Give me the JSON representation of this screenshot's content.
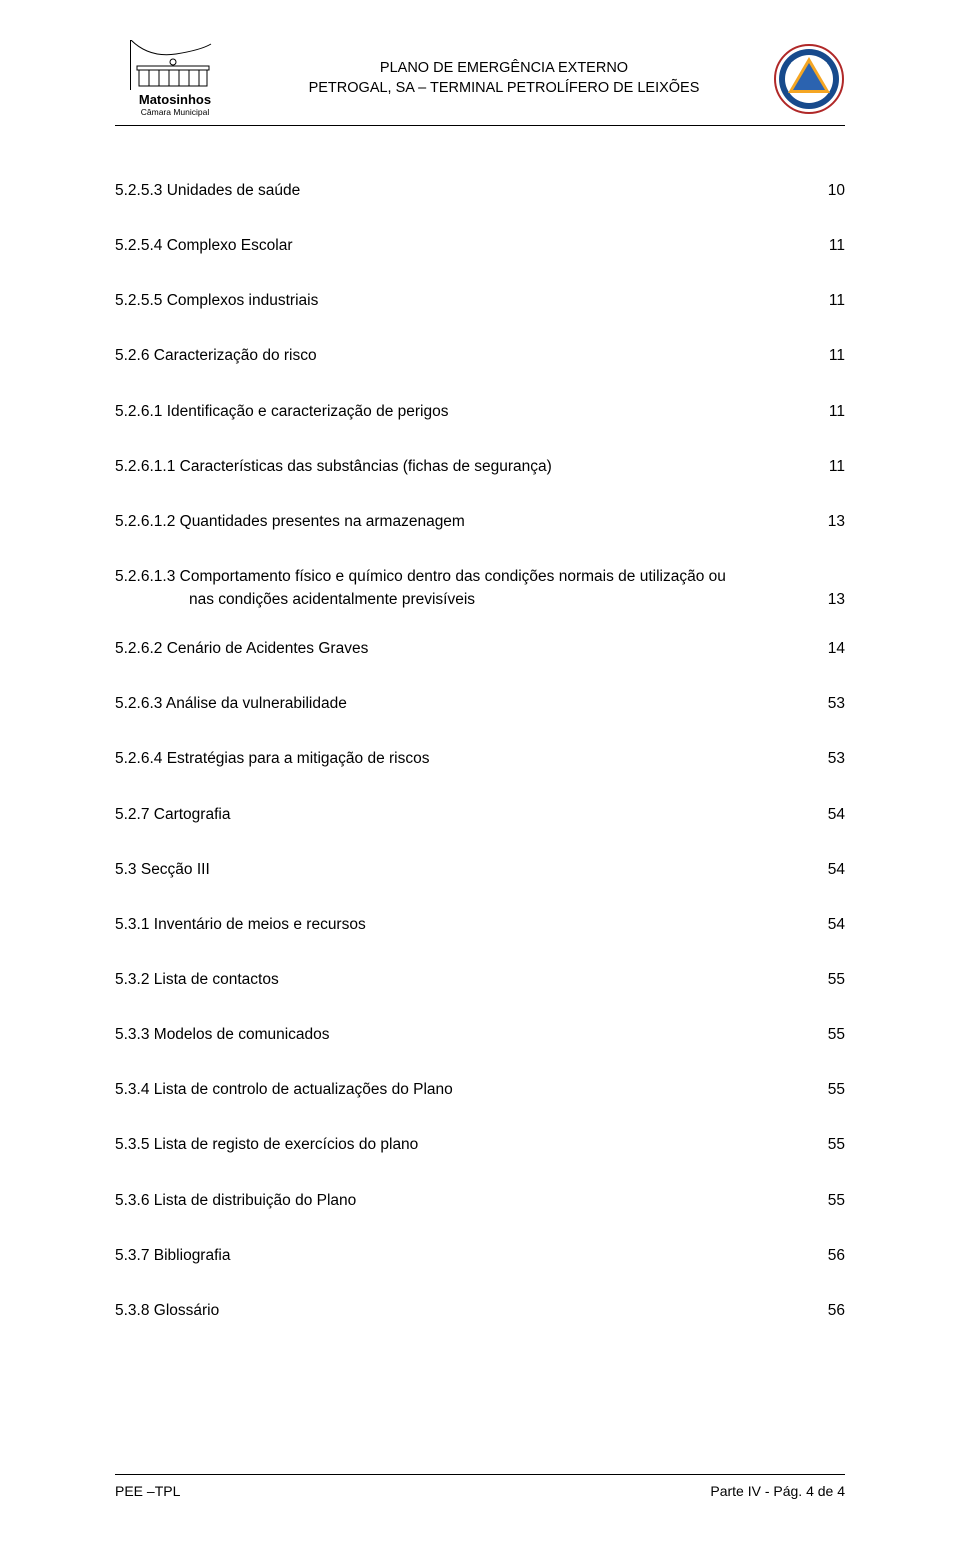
{
  "header": {
    "logo_main": "Matosinhos",
    "logo_sub": "Câmara Municipal",
    "title_line1": "PLANO DE EMERGÊNCIA EXTERNO",
    "title_line2": "PETROGAL, SA – TERMINAL PETROLÍFERO DE LEIXÕES"
  },
  "typography": {
    "body_fontsize": 15.5,
    "header_fontsize": 14.5,
    "footer_fontsize": 14
  },
  "colors": {
    "text": "#000000",
    "background": "#ffffff",
    "rule": "#000000",
    "badge_border": "#b02828",
    "badge_ring": "#174a8c",
    "badge_triangle": "#f5a623",
    "badge_inner": "#2b63b0"
  },
  "toc": [
    {
      "label": "5.2.5.3  Unidades de saúde",
      "page": "10",
      "gap": 35
    },
    {
      "label": "5.2.5.4  Complexo Escolar",
      "page": "11",
      "gap": 35
    },
    {
      "label": "5.2.5.5  Complexos industriais",
      "page": "11",
      "gap": 35
    },
    {
      "label": "5.2.6  Caracterização do risco",
      "page": "11",
      "gap": 35
    },
    {
      "label": "5.2.6.1  Identificação e caracterização de perigos",
      "page": "11",
      "gap": 35
    },
    {
      "label": "5.2.6.1.1  Características das substâncias (fichas de segurança)",
      "page": "11",
      "gap": 35
    },
    {
      "label": "5.2.6.1.2  Quantidades presentes na armazenagem",
      "page": "13",
      "gap": 35
    },
    {
      "label": "5.2.6.1.3  Comportamento físico e químico dentro das condições normais de utilização ou",
      "page": "",
      "gap": 4,
      "continuation": {
        "text": "nas condições acidentalmente previsíveis",
        "page": "13",
        "indent": 74
      }
    },
    {
      "label": "5.2.6.2  Cenário de Acidentes Graves",
      "page": "14",
      "gap_before": 30,
      "gap": 35
    },
    {
      "label": "5.2.6.3  Análise da vulnerabilidade",
      "page": "53",
      "gap": 35
    },
    {
      "label": "5.2.6.4  Estratégias para a mitigação de riscos",
      "page": "53",
      "gap": 35
    },
    {
      "label": "5.2.7  Cartografia",
      "page": "54",
      "gap": 35
    },
    {
      "label": "5.3   Secção III",
      "page": "54",
      "gap": 35
    },
    {
      "label": "5.3.1  Inventário de meios e recursos",
      "page": "54",
      "gap": 35
    },
    {
      "label": "5.3.2  Lista de contactos",
      "page": "55",
      "gap": 35
    },
    {
      "label": "5.3.3  Modelos de comunicados",
      "page": "55",
      "gap": 35
    },
    {
      "label": "5.3.4  Lista de controlo de actualizações do Plano",
      "page": "55",
      "gap": 35
    },
    {
      "label": "5.3.5  Lista de registo de exercícios do plano",
      "page": "55",
      "gap": 35
    },
    {
      "label": "5.3.6  Lista de distribuição do Plano",
      "page": "55",
      "gap": 35
    },
    {
      "label": "5.3.7  Bibliografia",
      "page": "56",
      "gap": 35
    },
    {
      "label": "5.3.8  Glossário",
      "page": "56",
      "gap": 0
    }
  ],
  "footer": {
    "left": "PEE –TPL",
    "right": "Parte IV - Pág. 4 de 4"
  }
}
